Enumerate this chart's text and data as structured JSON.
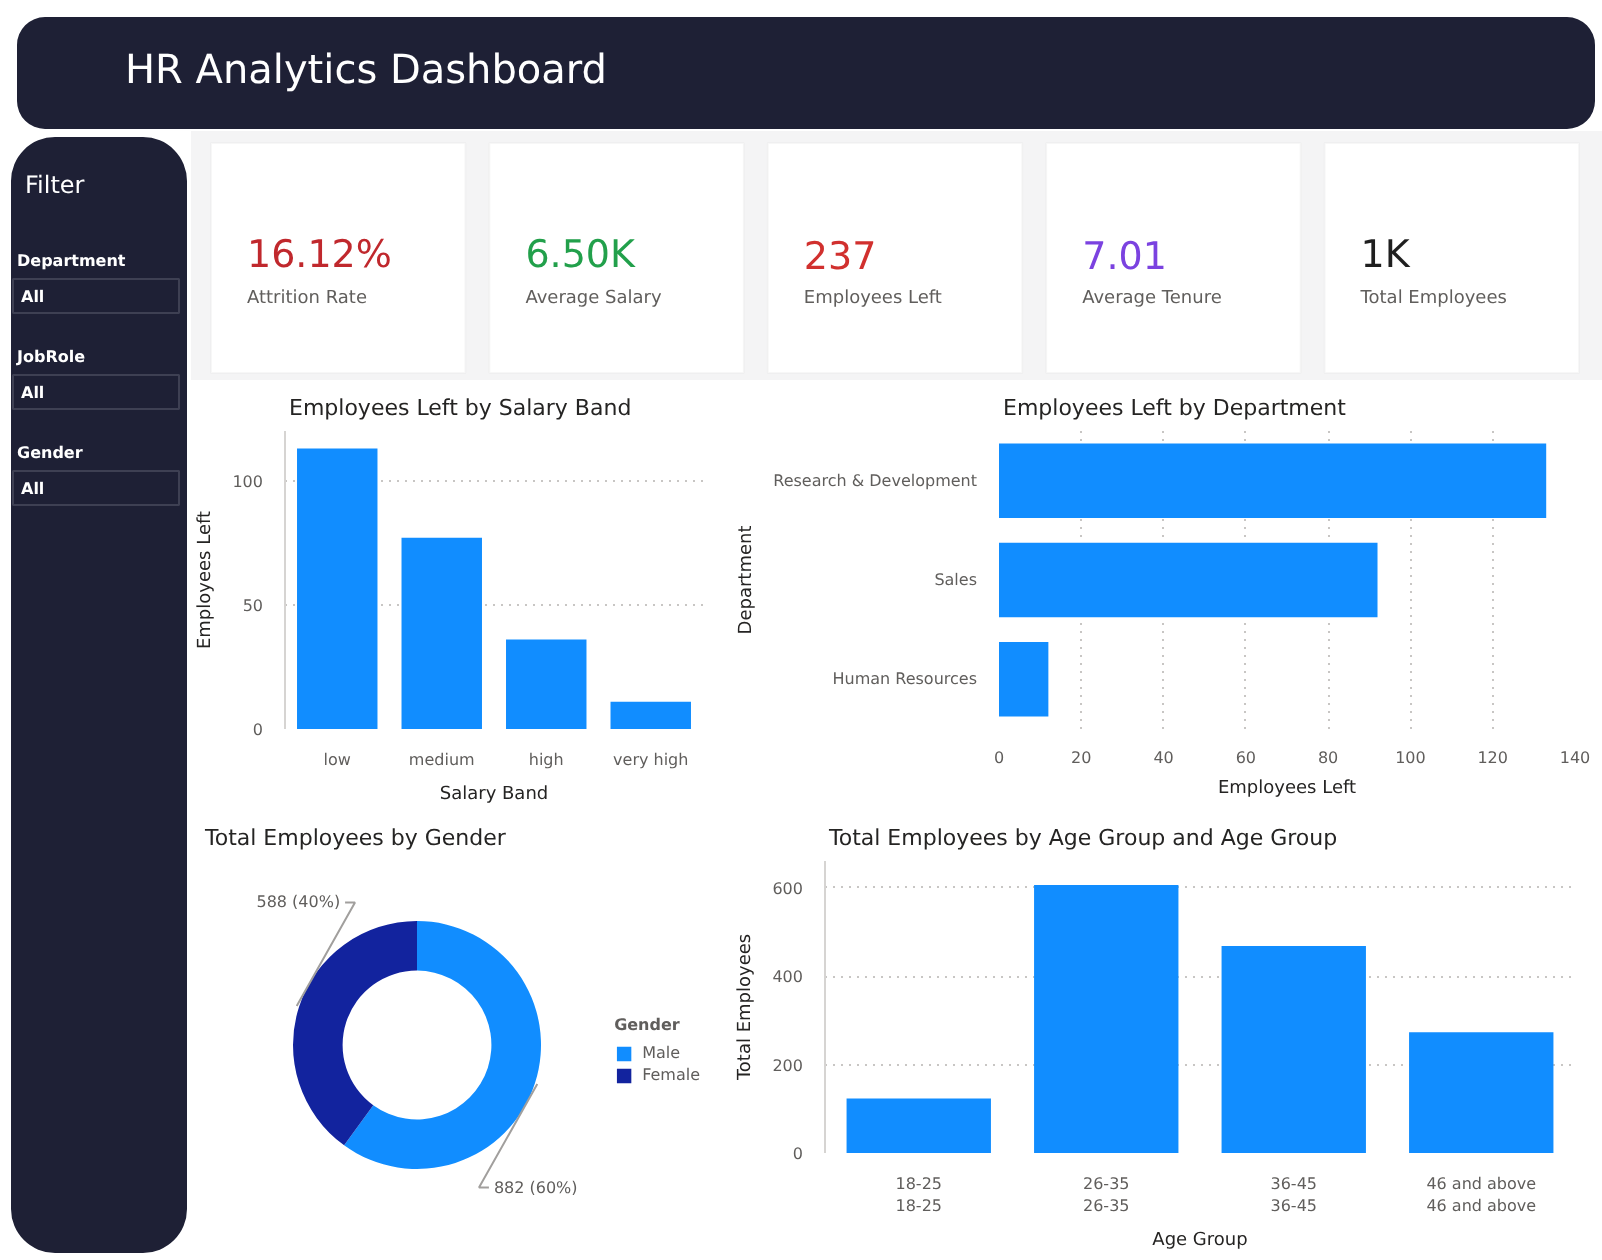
{
  "chart_data": [
    {
      "type": "other",
      "title": "HR Analytics Dashboard"
    },
    {
      "type": "other",
      "title": "Filter",
      "categories": [
        "Department",
        "JobRole",
        "Gender"
      ],
      "value_labels": [
        "All",
        "All",
        "All"
      ]
    },
    {
      "type": "other",
      "annotations": [
        "16.12%",
        "Attrition Rate",
        "6.50K",
        "Average Salary",
        "237",
        "Employees Left",
        "7.01",
        "Average Tenure",
        "1K",
        "Total Employees"
      ]
    },
    {
      "type": "bar",
      "title": "Employees Left by Salary Band",
      "xlabel": "Salary Band",
      "ylabel": "Employees Left",
      "categories": [
        "low",
        "medium",
        "high",
        "very high"
      ],
      "values": [
        113,
        77,
        36,
        11
      ],
      "color": "#118dff",
      "ylim": [
        0,
        120
      ],
      "yticks": [
        0,
        50,
        100
      ],
      "grid": "y"
    },
    {
      "type": "bar",
      "orientation": "horizontal",
      "title": "Employees Left by Department",
      "xlabel": "Employees Left",
      "ylabel": "Department",
      "categories": [
        "Research & Development",
        "Sales",
        "Human Resources"
      ],
      "values": [
        133,
        92,
        12
      ],
      "color": "#118dff",
      "xlim": [
        0,
        140
      ],
      "xticks": [
        0,
        20,
        40,
        60,
        80,
        100,
        120,
        140
      ],
      "grid": "x"
    },
    {
      "type": "donut",
      "title": "Total Employees by Gender",
      "legend_title": "Gender",
      "legend": "right",
      "categories": [
        "Male",
        "Female"
      ],
      "values": [
        882,
        588
      ],
      "value_labels": [
        "882 (60%)",
        "588 (40%)"
      ],
      "colors": [
        "#118dff",
        "#12239e"
      ]
    },
    {
      "type": "bar",
      "title": "Total Employees by Age Group and Age Group",
      "xlabel": "Age Group",
      "ylabel": "Total Employees",
      "categories": [
        "18-25\n18-25",
        "26-35\n26-35",
        "36-45\n36-45",
        "46 and above\n46 and above"
      ],
      "values": [
        123,
        606,
        468,
        273
      ],
      "color": "#118dff",
      "ylim": [
        0,
        660
      ],
      "yticks": [
        0,
        200,
        400,
        600
      ],
      "grid": "y"
    }
  ]
}
